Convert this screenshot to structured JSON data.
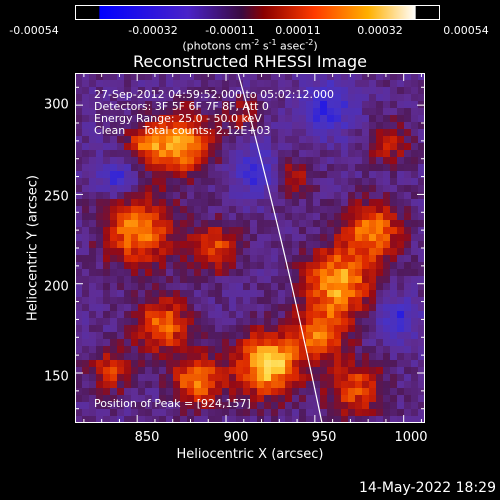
{
  "colorbar": {
    "ticks": [
      "-0.00054",
      "-0.00032",
      "-0.00011",
      "0.00011",
      "0.00032",
      "0.00054"
    ],
    "label_main": "(photons cm",
    "label_exp1": "-2",
    "label_mid1": " s",
    "label_exp2": "-1",
    "label_mid2": " asec",
    "label_exp3": "-2",
    "label_end": ")",
    "min": -0.00054,
    "max": 0.00054
  },
  "chart_data": {
    "type": "heatmap",
    "title": "Reconstructed RHESSI Image",
    "xlabel": "Heliocentric X (arcsec)",
    "ylabel": "Heliocentric Y (arcsec)",
    "xlim": [
      815,
      1012
    ],
    "ylim": [
      122,
      318
    ],
    "xticks": [
      "850",
      "900",
      "950",
      "1000"
    ],
    "yticks": [
      "150",
      "200",
      "250",
      "300"
    ],
    "annotations": {
      "time": "27-Sep-2012 04:59:52.000 to 05:02:12.000",
      "detectors": "Detectors: 3F 5F 6F 7F 8F, Att 0",
      "energy": "Energy Range: 25.0 - 50.0 keV",
      "method": "Clean     Total counts: 2.12E+03",
      "peak": "Position of Peak = [924,157]"
    }
  },
  "colors": {
    "background": "#000000",
    "colormap": [
      "#0000ff",
      "#5a2ab0",
      "#5b1a6e",
      "#b01010",
      "#ff4400",
      "#ffc000",
      "#ffffff"
    ]
  },
  "footer": {
    "date": "14-May-2022 18:29"
  }
}
